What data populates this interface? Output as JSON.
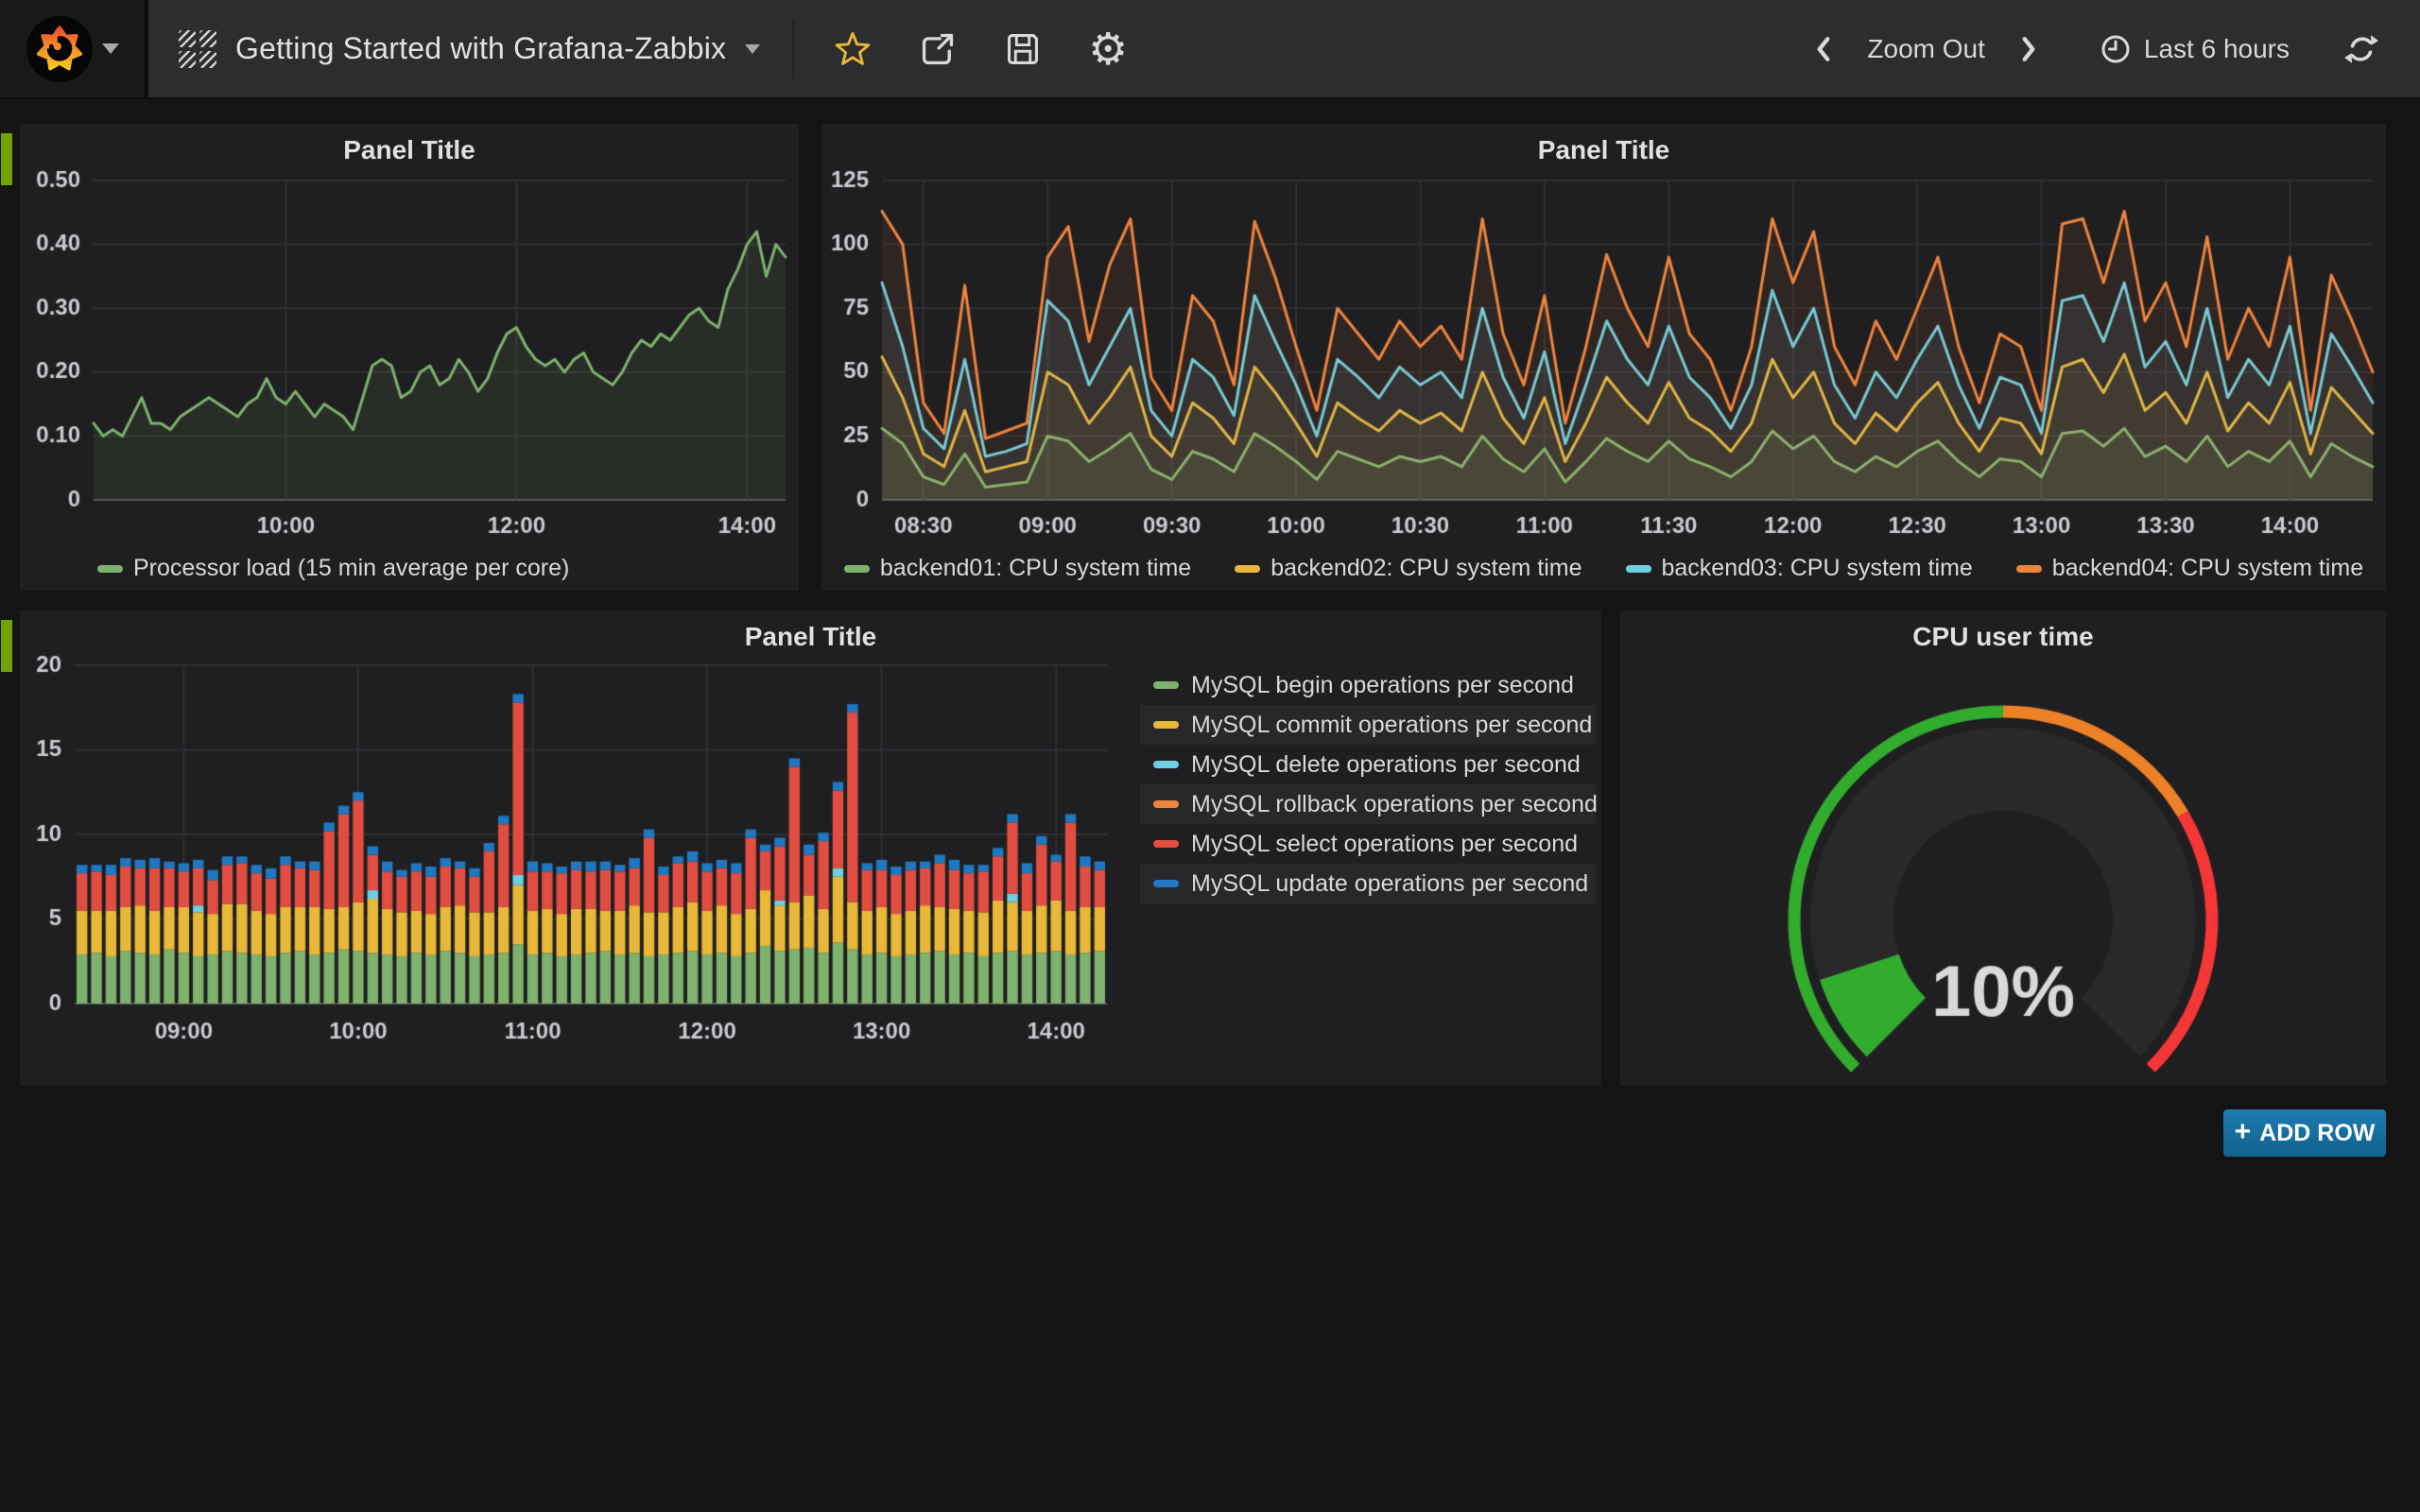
{
  "navbar": {
    "title": "Getting Started with Grafana-Zabbix",
    "zoom_out_label": "Zoom Out",
    "time_range": "Last 6 hours",
    "icons": {
      "logo": "grafana-flame",
      "dashboard": "hatched-grid",
      "actions": [
        "star",
        "share",
        "save",
        "settings-gear"
      ],
      "time_controls": [
        "chevron-left",
        "chevron-right",
        "clock",
        "refresh"
      ]
    },
    "star_color": "#eab839"
  },
  "panels": {
    "p1": {
      "title": "Panel Title"
    },
    "p2": {
      "title": "Panel Title"
    },
    "p3": {
      "title": "Panel Title"
    },
    "p4": {
      "title": "CPU user time"
    }
  },
  "add_row": {
    "label": "ADD ROW",
    "plus": "+"
  },
  "colors": {
    "page_bg": "#141415",
    "panel_bg": "#1f1f21",
    "navbar_bg": "#2d2d2f",
    "row_toggle_green": "#70a300",
    "add_row_blue": "#15729f",
    "palette": {
      "green": "#7eb26d",
      "yellow": "#eab839",
      "cyan": "#6ed0e0",
      "orange": "#ef843c",
      "red": "#e24d42",
      "blue": "#1f78c1"
    },
    "gauge": {
      "green": "#32ac2d",
      "orange": "#ed8128",
      "red": "#f53636"
    }
  },
  "chart_data": [
    {
      "type": "line",
      "panel": "processor-load",
      "title": "Panel Title",
      "x_range": {
        "from": "08:20",
        "to": "14:20",
        "step_min": 5
      },
      "ylim": [
        0,
        0.5
      ],
      "y_ticks": [
        0,
        0.1,
        0.2,
        0.3,
        0.4,
        0.5
      ],
      "y_decimals": 2,
      "ml": 78,
      "grid": true,
      "legend_position": "bottom-left",
      "x_ticks": [
        {
          "i": 20,
          "label": "10:00"
        },
        {
          "i": 44,
          "label": "12:00"
        },
        {
          "i": 68,
          "label": "14:00"
        }
      ],
      "series": [
        {
          "name": "Processor load (15 min average per core)",
          "color": "#7eb26d",
          "fill": 0.1,
          "values": [
            0.12,
            0.1,
            0.11,
            0.1,
            0.13,
            0.16,
            0.12,
            0.12,
            0.11,
            0.13,
            0.14,
            0.15,
            0.16,
            0.15,
            0.14,
            0.13,
            0.15,
            0.16,
            0.19,
            0.16,
            0.15,
            0.17,
            0.15,
            0.13,
            0.15,
            0.14,
            0.13,
            0.11,
            0.16,
            0.21,
            0.22,
            0.21,
            0.16,
            0.17,
            0.2,
            0.21,
            0.18,
            0.19,
            0.22,
            0.2,
            0.17,
            0.19,
            0.23,
            0.26,
            0.27,
            0.24,
            0.22,
            0.21,
            0.22,
            0.2,
            0.22,
            0.23,
            0.2,
            0.19,
            0.18,
            0.2,
            0.23,
            0.25,
            0.24,
            0.26,
            0.25,
            0.27,
            0.29,
            0.3,
            0.28,
            0.27,
            0.33,
            0.36,
            0.4,
            0.42,
            0.35,
            0.4,
            0.38
          ]
        }
      ]
    },
    {
      "type": "line",
      "panel": "cpu-system-time",
      "title": "Panel Title",
      "x_range": {
        "from": "08:20",
        "to": "14:20",
        "step_min": 5
      },
      "ylim": [
        0,
        125
      ],
      "y_ticks": [
        0,
        25,
        50,
        75,
        100,
        125
      ],
      "y_decimals": 0,
      "ml": 64,
      "grid": true,
      "legend_position": "bottom-center",
      "x_ticks": [
        {
          "i": 2,
          "label": "08:30"
        },
        {
          "i": 8,
          "label": "09:00"
        },
        {
          "i": 14,
          "label": "09:30"
        },
        {
          "i": 20,
          "label": "10:00"
        },
        {
          "i": 26,
          "label": "10:30"
        },
        {
          "i": 32,
          "label": "11:00"
        },
        {
          "i": 38,
          "label": "11:30"
        },
        {
          "i": 44,
          "label": "12:00"
        },
        {
          "i": 50,
          "label": "12:30"
        },
        {
          "i": 56,
          "label": "13:00"
        },
        {
          "i": 62,
          "label": "13:30"
        },
        {
          "i": 68,
          "label": "14:00"
        }
      ],
      "series": [
        {
          "name": "backend01: CPU system time",
          "color": "#7eb26d",
          "fill": 0.1,
          "values": [
            28,
            22,
            9,
            6,
            18,
            5,
            6,
            7,
            25,
            23,
            15,
            20,
            26,
            12,
            8,
            19,
            16,
            11,
            26,
            21,
            15,
            8,
            19,
            16,
            13,
            17,
            15,
            17,
            13,
            25,
            16,
            11,
            20,
            7,
            15,
            24,
            19,
            15,
            23,
            16,
            13,
            9,
            15,
            27,
            20,
            25,
            15,
            11,
            17,
            13,
            19,
            23,
            15,
            9,
            16,
            15,
            9,
            26,
            27,
            21,
            28,
            17,
            21,
            15,
            25,
            13,
            19,
            15,
            23,
            9,
            22,
            17,
            13
          ]
        },
        {
          "name": "backend02: CPU system time",
          "color": "#eab839",
          "fill": 0.08,
          "values": [
            56,
            40,
            18,
            13,
            35,
            11,
            13,
            15,
            50,
            45,
            30,
            40,
            52,
            25,
            17,
            38,
            32,
            22,
            52,
            42,
            30,
            17,
            38,
            32,
            27,
            35,
            30,
            34,
            27,
            50,
            32,
            22,
            40,
            15,
            30,
            48,
            38,
            30,
            46,
            32,
            27,
            19,
            30,
            55,
            40,
            50,
            30,
            22,
            34,
            27,
            38,
            46,
            30,
            19,
            32,
            30,
            18,
            52,
            55,
            42,
            57,
            35,
            42,
            30,
            50,
            27,
            38,
            30,
            46,
            18,
            44,
            35,
            26
          ]
        },
        {
          "name": "backend03: CPU system time",
          "color": "#6ed0e0",
          "fill": 0.08,
          "values": [
            85,
            60,
            28,
            20,
            55,
            17,
            19,
            22,
            78,
            70,
            45,
            60,
            75,
            35,
            25,
            55,
            48,
            33,
            80,
            62,
            45,
            25,
            55,
            48,
            40,
            52,
            45,
            50,
            40,
            75,
            48,
            32,
            58,
            22,
            45,
            70,
            55,
            45,
            68,
            48,
            40,
            28,
            45,
            82,
            60,
            75,
            45,
            32,
            50,
            40,
            55,
            68,
            45,
            28,
            48,
            45,
            26,
            78,
            80,
            62,
            85,
            52,
            62,
            45,
            75,
            40,
            55,
            45,
            68,
            26,
            65,
            52,
            38
          ]
        },
        {
          "name": "backend04: CPU system time",
          "color": "#ef843c",
          "fill": 0.08,
          "values": [
            113,
            100,
            38,
            26,
            84,
            24,
            27,
            30,
            95,
            107,
            62,
            92,
            110,
            48,
            35,
            80,
            70,
            45,
            109,
            87,
            60,
            35,
            75,
            65,
            55,
            70,
            60,
            68,
            55,
            110,
            65,
            45,
            80,
            30,
            60,
            96,
            75,
            60,
            95,
            65,
            55,
            35,
            60,
            110,
            85,
            105,
            60,
            45,
            70,
            55,
            75,
            95,
            60,
            38,
            65,
            60,
            35,
            108,
            110,
            85,
            113,
            70,
            85,
            60,
            103,
            55,
            75,
            60,
            95,
            35,
            88,
            70,
            50
          ]
        }
      ]
    },
    {
      "type": "bar-stacked",
      "panel": "mysql-operations",
      "title": "Panel Title",
      "x_range": {
        "from": "08:25",
        "to": "14:15",
        "step_min": 5
      },
      "ylim": [
        0,
        20
      ],
      "y_ticks": [
        0,
        5,
        10,
        15,
        20
      ],
      "y_decimals": 0,
      "grid": true,
      "legend_position": "right-table",
      "x_ticks": [
        {
          "i": 7,
          "label": "09:00"
        },
        {
          "i": 19,
          "label": "10:00"
        },
        {
          "i": 31,
          "label": "11:00"
        },
        {
          "i": 43,
          "label": "12:00"
        },
        {
          "i": 55,
          "label": "13:00"
        },
        {
          "i": 67,
          "label": "14:00"
        }
      ],
      "series": [
        {
          "name": "MySQL begin operations per second",
          "color": "#7eb26d",
          "values": [
            2.9,
            3.0,
            2.8,
            3.1,
            3.0,
            2.9,
            3.2,
            3.0,
            2.8,
            2.9,
            3.1,
            3.0,
            2.9,
            2.8,
            3.0,
            3.1,
            2.9,
            3.0,
            3.2,
            3.1,
            3.0,
            2.9,
            2.8,
            3.0,
            2.9,
            3.1,
            3.0,
            2.8,
            2.9,
            3.0,
            3.5,
            2.9,
            3.0,
            2.8,
            2.9,
            3.0,
            3.1,
            2.9,
            3.0,
            2.8,
            2.9,
            3.0,
            3.1,
            2.9,
            3.0,
            2.8,
            3.0,
            3.4,
            3.1,
            3.2,
            3.3,
            3.0,
            3.6,
            3.2,
            2.9,
            3.0,
            2.8,
            2.9,
            3.0,
            3.1,
            2.9,
            3.0,
            2.8,
            3.0,
            3.1,
            2.9,
            3.0,
            3.1,
            2.9,
            3.0,
            3.1
          ]
        },
        {
          "name": "MySQL commit operations per second",
          "color": "#eab839",
          "values": [
            2.6,
            2.5,
            2.7,
            2.6,
            2.8,
            2.6,
            2.5,
            2.7,
            2.6,
            2.4,
            2.8,
            2.9,
            2.6,
            2.5,
            2.7,
            2.6,
            2.8,
            2.6,
            2.5,
            2.9,
            3.2,
            2.7,
            2.6,
            2.5,
            2.4,
            2.6,
            2.8,
            2.6,
            2.5,
            2.7,
            3.5,
            2.6,
            2.6,
            2.5,
            2.7,
            2.6,
            2.4,
            2.6,
            2.8,
            2.6,
            2.5,
            2.7,
            2.9,
            2.6,
            2.8,
            2.5,
            2.6,
            3.3,
            2.7,
            2.8,
            3.1,
            2.6,
            3.9,
            2.8,
            2.6,
            2.7,
            2.5,
            2.6,
            2.8,
            2.6,
            2.7,
            2.5,
            2.6,
            3.1,
            2.9,
            2.6,
            2.8,
            3.0,
            2.6,
            2.7,
            2.6
          ]
        },
        {
          "name": "MySQL delete operations per second",
          "color": "#6ed0e0",
          "values": [
            0,
            0,
            0,
            0,
            0,
            0,
            0,
            0,
            0.4,
            0,
            0,
            0,
            0,
            0,
            0,
            0,
            0,
            0,
            0,
            0,
            0.5,
            0,
            0,
            0,
            0,
            0,
            0,
            0,
            0,
            0,
            0.6,
            0,
            0,
            0,
            0,
            0,
            0,
            0,
            0,
            0,
            0,
            0,
            0,
            0,
            0,
            0,
            0,
            0,
            0.3,
            0,
            0,
            0,
            0.5,
            0,
            0,
            0,
            0,
            0,
            0,
            0,
            0,
            0,
            0,
            0,
            0.5,
            0,
            0,
            0,
            0,
            0,
            0
          ]
        },
        {
          "name": "MySQL rollback operations per second",
          "color": "#ef843c",
          "values": [
            0,
            0,
            0,
            0,
            0,
            0,
            0,
            0,
            0,
            0,
            0,
            0,
            0,
            0,
            0,
            0,
            0,
            0,
            0,
            0,
            0,
            0,
            0,
            0,
            0,
            0,
            0,
            0,
            0,
            0,
            0,
            0,
            0,
            0,
            0,
            0,
            0,
            0,
            0,
            0,
            0,
            0,
            0,
            0,
            0,
            0,
            0,
            0,
            0,
            0,
            0,
            0,
            0,
            0,
            0,
            0,
            0,
            0,
            0,
            0,
            0,
            0,
            0,
            0,
            0,
            0,
            0,
            0,
            0,
            0,
            0
          ]
        },
        {
          "name": "MySQL select operations per second",
          "color": "#e24d42",
          "values": [
            2.2,
            2.3,
            2.1,
            2.4,
            2.2,
            2.5,
            2.3,
            2.1,
            2.2,
            2.0,
            2.3,
            2.4,
            2.2,
            2.1,
            2.5,
            2.3,
            2.2,
            4.6,
            5.5,
            6.0,
            2.1,
            2.2,
            2.1,
            2.3,
            2.2,
            2.4,
            2.2,
            2.1,
            3.6,
            4.9,
            10.2,
            2.3,
            2.2,
            2.4,
            2.3,
            2.2,
            2.4,
            2.3,
            2.2,
            4.4,
            2.2,
            2.6,
            2.4,
            2.3,
            2.2,
            2.4,
            4.2,
            2.3,
            3.2,
            8.0,
            2.4,
            4.0,
            4.6,
            11.2,
            2.4,
            2.2,
            2.3,
            2.4,
            2.2,
            2.6,
            2.3,
            2.2,
            2.4,
            2.6,
            4.2,
            2.2,
            3.6,
            2.3,
            5.2,
            2.4,
            2.2
          ]
        },
        {
          "name": "MySQL update operations per second",
          "color": "#1f78c1",
          "values": [
            0.5,
            0.4,
            0.6,
            0.5,
            0.5,
            0.6,
            0.4,
            0.5,
            0.5,
            0.6,
            0.5,
            0.4,
            0.5,
            0.6,
            0.5,
            0.4,
            0.5,
            0.5,
            0.5,
            0.5,
            0.5,
            0.6,
            0.4,
            0.5,
            0.6,
            0.5,
            0.4,
            0.5,
            0.5,
            0.5,
            0.5,
            0.6,
            0.5,
            0.4,
            0.5,
            0.6,
            0.5,
            0.4,
            0.6,
            0.5,
            0.5,
            0.4,
            0.6,
            0.5,
            0.5,
            0.6,
            0.5,
            0.4,
            0.5,
            0.5,
            0.6,
            0.5,
            0.5,
            0.5,
            0.4,
            0.6,
            0.5,
            0.5,
            0.4,
            0.5,
            0.6,
            0.5,
            0.4,
            0.5,
            0.5,
            0.6,
            0.5,
            0.4,
            0.5,
            0.6,
            0.5
          ]
        }
      ]
    },
    {
      "type": "gauge",
      "panel": "cpu-user-time",
      "title": "CPU user time",
      "value": 10,
      "unit": "%",
      "value_text": "10%",
      "min": 0,
      "max": 100,
      "thresholds": [
        {
          "to": 50,
          "color": "#32ac2d"
        },
        {
          "to": 72,
          "color": "#ed8128"
        },
        {
          "to": 100,
          "color": "#f53636"
        }
      ],
      "value_color": "#32ac2d",
      "text_color": "#d8d9da"
    }
  ]
}
